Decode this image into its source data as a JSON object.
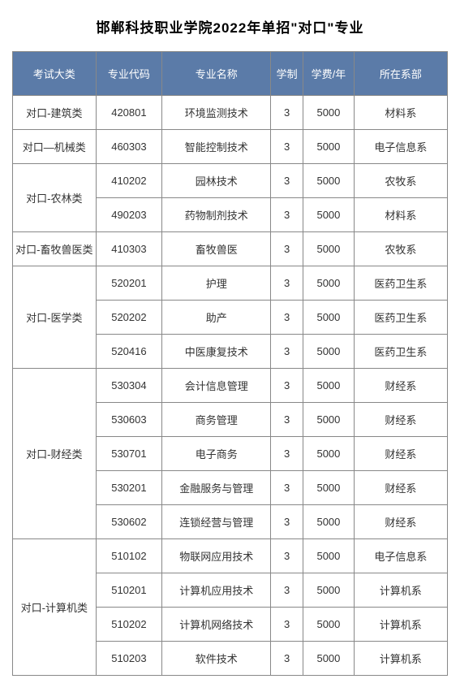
{
  "title": "邯郸科技职业学院2022年单招\"对口\"专业",
  "table": {
    "header_bg": "#5b7ba8",
    "header_color": "#ffffff",
    "border_color": "#888888",
    "columns": [
      "考试大类",
      "专业代码",
      "专业名称",
      "学制",
      "学费/年",
      "所在系部"
    ],
    "groups": [
      {
        "category": "对口-建筑类",
        "rows": [
          {
            "code": "420801",
            "name": "环境监测技术",
            "years": "3",
            "fee": "5000",
            "dept": "材料系"
          }
        ]
      },
      {
        "category": "对口—机械类",
        "rows": [
          {
            "code": "460303",
            "name": "智能控制技术",
            "years": "3",
            "fee": "5000",
            "dept": "电子信息系"
          }
        ]
      },
      {
        "category": "对口-农林类",
        "rows": [
          {
            "code": "410202",
            "name": "园林技术",
            "years": "3",
            "fee": "5000",
            "dept": "农牧系"
          },
          {
            "code": "490203",
            "name": "药物制剂技术",
            "years": "3",
            "fee": "5000",
            "dept": "材料系"
          }
        ]
      },
      {
        "category": "对口-畜牧兽医类",
        "rows": [
          {
            "code": "410303",
            "name": "畜牧兽医",
            "years": "3",
            "fee": "5000",
            "dept": "农牧系"
          }
        ]
      },
      {
        "category": "对口-医学类",
        "rows": [
          {
            "code": "520201",
            "name": "护理",
            "years": "3",
            "fee": "5000",
            "dept": "医药卫生系"
          },
          {
            "code": "520202",
            "name": "助产",
            "years": "3",
            "fee": "5000",
            "dept": "医药卫生系"
          },
          {
            "code": "520416",
            "name": "中医康复技术",
            "years": "3",
            "fee": "5000",
            "dept": "医药卫生系"
          }
        ]
      },
      {
        "category": "对口-财经类",
        "rows": [
          {
            "code": "530304",
            "name": "会计信息管理",
            "years": "3",
            "fee": "5000",
            "dept": "财经系"
          },
          {
            "code": "530603",
            "name": "商务管理",
            "years": "3",
            "fee": "5000",
            "dept": "财经系"
          },
          {
            "code": "530701",
            "name": "电子商务",
            "years": "3",
            "fee": "5000",
            "dept": "财经系"
          },
          {
            "code": "530201",
            "name": "金融服务与管理",
            "years": "3",
            "fee": "5000",
            "dept": "财经系"
          },
          {
            "code": "530602",
            "name": "连锁经营与管理",
            "years": "3",
            "fee": "5000",
            "dept": "财经系"
          }
        ]
      },
      {
        "category": "对口-计算机类",
        "rows": [
          {
            "code": "510102",
            "name": "物联网应用技术",
            "years": "3",
            "fee": "5000",
            "dept": "电子信息系"
          },
          {
            "code": "510201",
            "name": "计算机应用技术",
            "years": "3",
            "fee": "5000",
            "dept": "计算机系"
          },
          {
            "code": "510202",
            "name": "计算机网络技术",
            "years": "3",
            "fee": "5000",
            "dept": "计算机系"
          },
          {
            "code": "510203",
            "name": "软件技术",
            "years": "3",
            "fee": "5000",
            "dept": "计算机系"
          }
        ]
      }
    ]
  }
}
